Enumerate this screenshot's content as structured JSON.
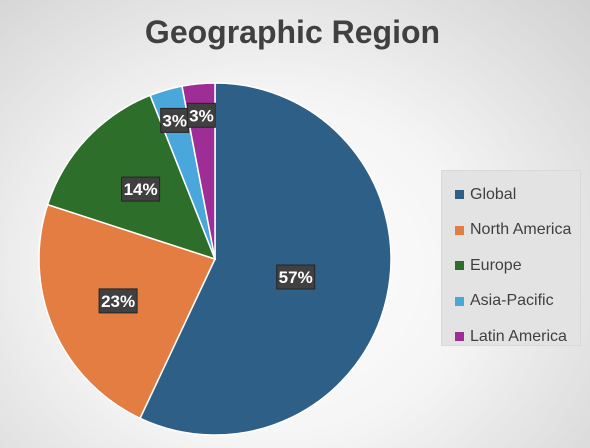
{
  "chart_data": {
    "type": "pie",
    "title": "Geographic Region",
    "categories": [
      "Global",
      "North America",
      "Europe",
      "Asia-Pacific",
      "Latin America"
    ],
    "values": [
      57,
      23,
      14,
      3,
      3
    ],
    "labels": [
      "57%",
      "23%",
      "14%",
      "3%",
      "3%"
    ],
    "colors": [
      "#2e5f87",
      "#e37d41",
      "#2e6e2b",
      "#4aa7db",
      "#9e2d96"
    ],
    "legend_position": "right"
  }
}
